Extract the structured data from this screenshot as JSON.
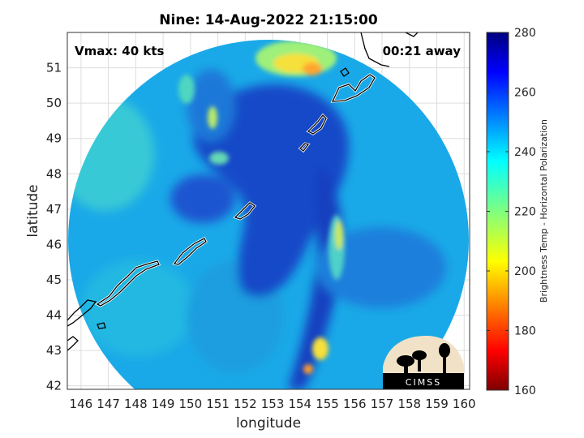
{
  "chart_data": {
    "type": "heatmap",
    "title": "Nine: 14-Aug-2022 21:15:00",
    "xlabel": "longitude",
    "ylabel": "latitude",
    "xlim": [
      145.5,
      160.2
    ],
    "ylim": [
      41.9,
      52.0
    ],
    "xticks": [
      146,
      147,
      148,
      149,
      150,
      151,
      152,
      153,
      154,
      155,
      156,
      157,
      158,
      159,
      160
    ],
    "yticks": [
      42,
      43,
      44,
      45,
      46,
      47,
      48,
      49,
      50,
      51
    ],
    "grid": true,
    "annotations": {
      "vmax": "Vmax: 40 kts",
      "time_away": "00:21 away"
    },
    "colorbar": {
      "label": "Brightness Temp - Horizontal Polarization",
      "min": 160,
      "max": 280,
      "ticks": [
        160,
        180,
        200,
        220,
        240,
        260,
        280
      ],
      "colormap": "jet"
    },
    "logo_text": "CIMSS"
  },
  "colors": {
    "swath_background": "#1aa9e8",
    "cold_band": "#1748c8",
    "warm_core": "#f6e03a"
  }
}
